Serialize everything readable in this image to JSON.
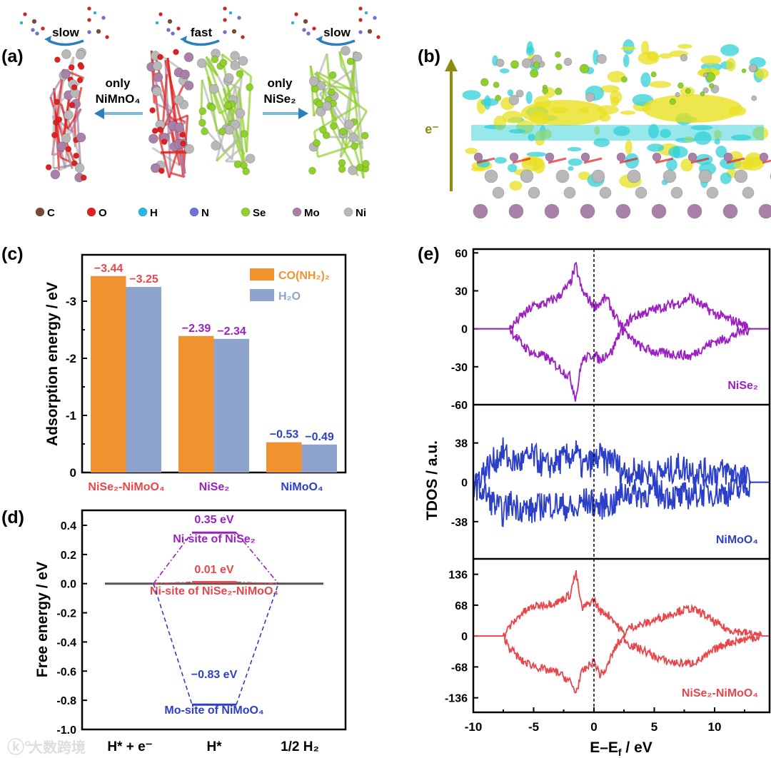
{
  "panel_labels": {
    "a": "(a)",
    "b": "(b)",
    "c": "(c)",
    "d": "(d)",
    "e": "(e)"
  },
  "panel_a": {
    "rates": [
      "slow",
      "fast",
      "slow"
    ],
    "left_arrow_label": [
      "only",
      "NiMnO₄"
    ],
    "right_arrow_label": [
      "only",
      "NiSe₂"
    ],
    "legend": [
      {
        "symbol": "C",
        "color": "#7a4a32"
      },
      {
        "symbol": "O",
        "color": "#e02020"
      },
      {
        "symbol": "H",
        "color": "#29b6e8"
      },
      {
        "symbol": "N",
        "color": "#7070d8"
      },
      {
        "symbol": "Se",
        "color": "#8fd12a"
      },
      {
        "symbol": "Mo",
        "color": "#a980a8"
      },
      {
        "symbol": "Ni",
        "color": "#b8b8b8"
      }
    ]
  },
  "panel_b": {
    "arrow_label": "e⁻",
    "colors": {
      "accumulation": "#e8e020",
      "depletion": "#30d0d8",
      "arrow": "#8c8c10"
    }
  },
  "chart_data": [
    {
      "panel": "c",
      "type": "bar",
      "categories": [
        "NiSe₂-NiMoO₄",
        "NiSe₂",
        "NiMoO₄"
      ],
      "category_colors": [
        "#e8464a",
        "#9b1fc1",
        "#2b3fc9"
      ],
      "series": [
        {
          "name": "CO(NH₂)₂",
          "color": "#f0922f",
          "values": [
            -3.44,
            -2.39,
            -0.53
          ],
          "labels": [
            "−3.44",
            "−2.39",
            "−0.53"
          ]
        },
        {
          "name": "H₂O",
          "color": "#8fa3cf",
          "values": [
            -3.25,
            -2.34,
            -0.49
          ],
          "labels": [
            "−3.25",
            "−2.34",
            "−0.49"
          ]
        }
      ],
      "ylabel": "Adsorption energy / eV",
      "yticks": [
        "0",
        "-1",
        "-2",
        "-3"
      ],
      "ylim": [
        0,
        -3.8
      ],
      "legend_position": "top-right"
    },
    {
      "panel": "d",
      "type": "line",
      "x_categories": [
        "H* + e⁻",
        "H*",
        "1/2 H₂"
      ],
      "ylabel": "Free energy / eV",
      "yticks": [
        "0.4",
        "0.2",
        "0.0",
        "-0.2",
        "-0.4",
        "-0.6",
        "-0.8",
        "-1.0"
      ],
      "ylim": [
        -1.0,
        0.5
      ],
      "series": [
        {
          "name": "Ni-site of NiSe₂",
          "color": "#9b1fc1",
          "values": [
            0,
            0.35,
            0
          ],
          "value_label": "0.35 eV"
        },
        {
          "name": "Ni-site of NiSe₂-NiMoO₄",
          "color": "#e8464a",
          "values": [
            0,
            0.01,
            0
          ],
          "value_label": "0.01 eV"
        },
        {
          "name": "Mo-site of NiMoO₄",
          "color": "#2b3fc9",
          "values": [
            0,
            -0.83,
            0
          ],
          "value_label": "−0.83 eV"
        }
      ]
    },
    {
      "panel": "e",
      "type": "line",
      "ylabel": "TDOS / a.u.",
      "xlabel_main": "E–E",
      "xlabel_sub": "f",
      "xlabel_unit": " / eV",
      "xticks": [
        "-10",
        "-5",
        "0",
        "5",
        "10"
      ],
      "xlim": [
        -10,
        14.5
      ],
      "fermi_level": 0,
      "x": [
        -10,
        -7.5,
        -7,
        -6,
        -5,
        -4,
        -3,
        -2,
        -1.5,
        -1,
        0,
        0.5,
        1,
        1.5,
        2,
        2.5,
        3,
        4,
        5,
        6,
        7,
        8,
        9,
        10,
        11,
        12,
        13,
        14
      ],
      "subplots": [
        {
          "name": "NiSe₂",
          "color": "#9b1fc1",
          "yticks": [
            "60",
            "30",
            "0",
            "-30",
            "-60"
          ],
          "ytick_values": [
            60,
            30,
            0,
            -30,
            -60
          ],
          "ylim": [
            -60,
            63
          ],
          "noise": 4,
          "spin_up": [
            0,
            0,
            0,
            10,
            18,
            20,
            25,
            35,
            50,
            30,
            18,
            20,
            25,
            15,
            5,
            0,
            8,
            12,
            15,
            18,
            20,
            25,
            18,
            12,
            8,
            5,
            0,
            0
          ],
          "spin_down": [
            0,
            0,
            0,
            -12,
            -20,
            -22,
            -30,
            -38,
            -55,
            -25,
            -20,
            -25,
            -20,
            -18,
            -5,
            0,
            -8,
            -15,
            -18,
            -20,
            -20,
            -22,
            -15,
            -10,
            -8,
            -3,
            0,
            0
          ]
        },
        {
          "name": "NiMoO₄",
          "color": "#2b3fc9",
          "yticks": [
            "38",
            "0",
            "-38"
          ],
          "ytick_values": [
            38,
            0,
            -38
          ],
          "ylim": [
            -74,
            75
          ],
          "noise": 14,
          "spin_up": [
            0,
            30,
            20,
            20,
            25,
            15,
            20,
            25,
            30,
            15,
            20,
            25,
            18,
            25,
            15,
            10,
            10,
            10,
            8,
            10,
            15,
            12,
            10,
            10,
            10,
            8,
            0,
            0
          ],
          "spin_down": [
            0,
            -30,
            -20,
            -25,
            -28,
            -20,
            -22,
            -25,
            -30,
            -18,
            -20,
            -25,
            -18,
            -22,
            -15,
            -10,
            -10,
            -12,
            -10,
            -12,
            -15,
            -12,
            -10,
            -10,
            -10,
            -8,
            0,
            0
          ]
        },
        {
          "name": "NiSe₂-NiMoO₄",
          "color": "#e8464a",
          "yticks": [
            "136",
            "68",
            "0",
            "-68",
            "-136"
          ],
          "ytick_values": [
            136,
            68,
            0,
            -68,
            -136
          ],
          "ylim": [
            -168,
            170
          ],
          "noise": 9,
          "spin_up": [
            0,
            0,
            20,
            50,
            65,
            70,
            75,
            90,
            140,
            60,
            80,
            55,
            50,
            40,
            20,
            5,
            20,
            25,
            35,
            45,
            55,
            60,
            50,
            30,
            15,
            10,
            5,
            0
          ],
          "spin_down": [
            0,
            0,
            -25,
            -55,
            -65,
            -75,
            -80,
            -100,
            -125,
            -80,
            -55,
            -85,
            -75,
            -40,
            -15,
            -5,
            -20,
            -30,
            -45,
            -55,
            -60,
            -60,
            -50,
            -30,
            -15,
            -10,
            -5,
            0
          ]
        }
      ]
    }
  ],
  "watermark": "大数跨境"
}
